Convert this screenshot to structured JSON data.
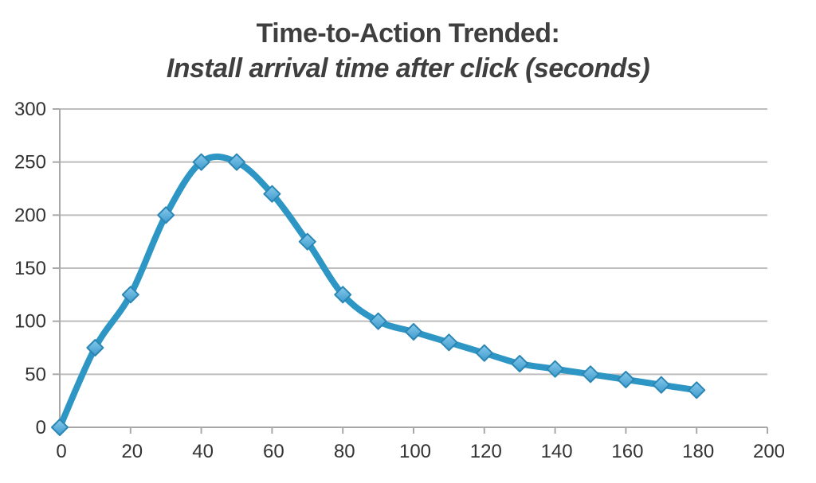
{
  "title": {
    "line1": "Time-to-Action Trended:",
    "line2": "Install arrival time after click (seconds)"
  },
  "colors": {
    "title_text": "#3f3f3f",
    "line": "#2e96c4",
    "marker_fill_top": "#86c9ec",
    "marker_fill_bottom": "#3e9bcd",
    "marker_stroke": "#2b86b4",
    "gridline": "#bdbdbd",
    "axis": "#a8a8a8",
    "tick_label": "#333333",
    "background": "#ffffff"
  },
  "chart_data": {
    "type": "line",
    "title": "Time-to-Action Trended: Install arrival time after click (seconds)",
    "x": [
      0,
      10,
      20,
      30,
      40,
      50,
      60,
      70,
      80,
      90,
      100,
      110,
      120,
      130,
      140,
      150,
      160,
      170,
      180
    ],
    "y": [
      0,
      75,
      125,
      200,
      250,
      250,
      220,
      175,
      125,
      100,
      90,
      80,
      70,
      60,
      55,
      50,
      45,
      40,
      35
    ],
    "series_name": "Install arrival time after click (seconds)",
    "xlabel": "",
    "ylabel": "",
    "xlim": [
      0,
      200
    ],
    "ylim": [
      0,
      300
    ],
    "x_ticks": [
      0,
      20,
      40,
      60,
      80,
      100,
      120,
      140,
      160,
      180,
      200
    ],
    "y_ticks": [
      0,
      50,
      100,
      150,
      200,
      250,
      300
    ],
    "grid": "horizontal",
    "legend": "none",
    "marker": "diamond",
    "smooth": true
  }
}
